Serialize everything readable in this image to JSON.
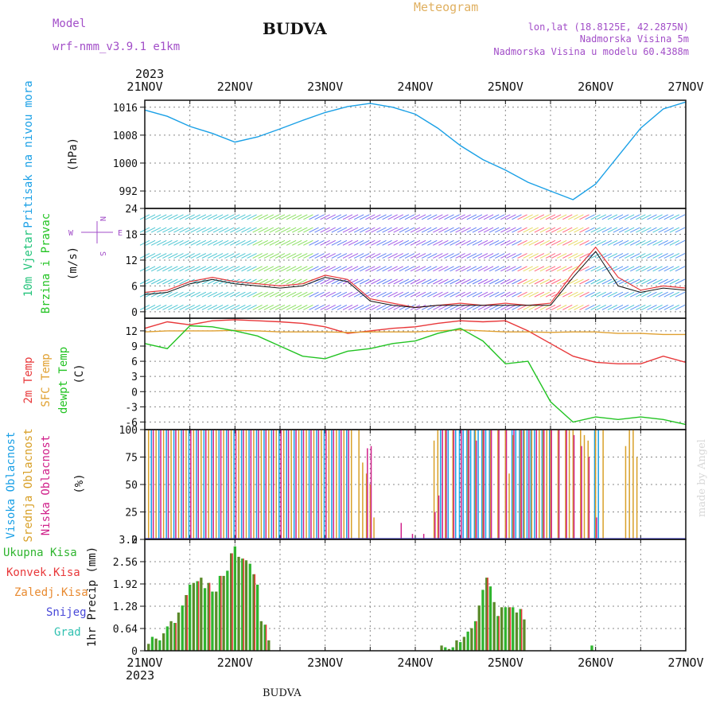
{
  "header": {
    "model_label": "Model",
    "model_name": "wrf-nmm_v3.9.1  e1km",
    "city": "BUDVA",
    "meteogram": "Meteogram",
    "lonlat": "lon,lat (18.8125E, 42.2875N)",
    "elevation": "Nadmorska Visina 5m",
    "model_elevation": "Nadmorska Visina u modelu 60.4388m",
    "year": "2023",
    "footer_city": "BUDVA",
    "watermark": "made by Angel"
  },
  "colors": {
    "pressure": "#1aa0e6",
    "temp2m": "#e8383a",
    "sfc_temp": "#e0a030",
    "dewpt": "#22c322",
    "high_cloud": "#1aa0e6",
    "mid_cloud": "#d8a028",
    "low_cloud": "#d0208a",
    "total_precip": "#2fb52f",
    "conv_precip": "#e8383a",
    "frz_precip": "#e88a30",
    "snow": "#4848d8",
    "hail": "#30c0b0",
    "wind_speed": "#e8383a",
    "gust": "#111111"
  },
  "chart_data": [
    {
      "type": "line",
      "panel": "pressure",
      "ylabel": [
        "Pritisak na nivou mora",
        "(hPa)"
      ],
      "x_ticks": [
        "21NOV",
        "22NOV",
        "23NOV",
        "24NOV",
        "25NOV",
        "26NOV",
        "27NOV"
      ],
      "y_ticks": [
        992,
        1000,
        1008,
        1016
      ],
      "ylim": [
        987,
        1018
      ],
      "x_hours": [
        0,
        6,
        12,
        18,
        24,
        30,
        36,
        42,
        48,
        54,
        60,
        66,
        72,
        78,
        84,
        90,
        96,
        102,
        108,
        114,
        120,
        126,
        132,
        138,
        144
      ],
      "series": [
        {
          "values": [
            1015.2,
            1013.4,
            1010.5,
            1008.5,
            1006.0,
            1007.5,
            1009.8,
            1012.2,
            1014.5,
            1016.2,
            1017.1,
            1016.0,
            1014.0,
            1010.0,
            1005.0,
            1001.0,
            998.0,
            994.5,
            992.0,
            989.5,
            994.0,
            1002.0,
            1010.0,
            1015.5,
            1017.5
          ]
        }
      ]
    },
    {
      "type": "line",
      "panel": "wind",
      "ylabel": [
        "10m Vjetar",
        "Brzina i Pravac",
        "(m/s)"
      ],
      "compass": {
        "w": "W",
        "e": "E",
        "n": "N",
        "s": "S"
      },
      "y_ticks": [
        0,
        6,
        12,
        18,
        24
      ],
      "ylim": [
        -1.5,
        24
      ],
      "x_hours": [
        0,
        6,
        12,
        18,
        24,
        30,
        36,
        42,
        48,
        54,
        60,
        66,
        72,
        78,
        84,
        90,
        96,
        102,
        108,
        114,
        120,
        126,
        132,
        138,
        144
      ],
      "series": [
        {
          "values": [
            4.5,
            5.0,
            7.0,
            8.0,
            7.0,
            6.5,
            6.0,
            6.5,
            8.5,
            7.5,
            3.0,
            2.0,
            1.0,
            1.5,
            2.0,
            1.5,
            2.0,
            1.5,
            2.0,
            9.0,
            15.0,
            8.0,
            5.0,
            6.0,
            5.5
          ]
        },
        {
          "values": [
            4.0,
            4.5,
            6.5,
            7.5,
            6.5,
            6.0,
            5.5,
            6.0,
            8.0,
            7.0,
            2.5,
            1.5,
            1.0,
            1.5,
            1.5,
            1.5,
            1.5,
            1.5,
            1.5,
            8.0,
            14.0,
            6.0,
            4.5,
            5.5,
            5.0
          ]
        }
      ]
    },
    {
      "type": "line",
      "panel": "temperature",
      "ylabel": [
        "2m Temp",
        "SFC Temp",
        "dewpt Temp",
        "(C)"
      ],
      "y_ticks": [
        -6,
        -3,
        0,
        3,
        6,
        9,
        12
      ],
      "ylim": [
        -7.5,
        14.5
      ],
      "x_hours": [
        0,
        6,
        12,
        18,
        24,
        30,
        36,
        42,
        48,
        54,
        60,
        66,
        72,
        78,
        84,
        90,
        96,
        102,
        108,
        114,
        120,
        126,
        132,
        138,
        144
      ],
      "series": [
        {
          "name": "2m Temp",
          "values": [
            12.5,
            13.8,
            13.2,
            14.0,
            14.2,
            14.0,
            13.8,
            13.5,
            12.8,
            11.5,
            12.0,
            12.5,
            12.8,
            13.5,
            14.0,
            13.8,
            14.0,
            12.0,
            9.5,
            7.0,
            5.8,
            5.5,
            5.5,
            7.0,
            5.8
          ]
        },
        {
          "name": "SFC Temp",
          "values": [
            11.8,
            12.0,
            12.0,
            12.0,
            12.1,
            12.0,
            11.8,
            11.8,
            11.8,
            11.7,
            11.8,
            11.8,
            11.8,
            12.0,
            12.2,
            12.0,
            11.8,
            11.8,
            11.7,
            11.8,
            11.8,
            11.5,
            11.5,
            11.3,
            11.3
          ]
        },
        {
          "name": "dewpt Temp",
          "values": [
            9.5,
            8.5,
            13.0,
            12.8,
            12.0,
            11.0,
            9.0,
            7.0,
            6.5,
            8.0,
            8.5,
            9.5,
            10.0,
            11.5,
            12.5,
            10.0,
            5.5,
            6.0,
            -2.0,
            -6.0,
            -5.0,
            -5.5,
            -5.0,
            -5.5,
            -6.5
          ]
        }
      ]
    },
    {
      "type": "bar",
      "panel": "clouds",
      "ylabel": [
        "Visoka Oblacnost",
        "Srednja Oblacnost",
        "Niska Oblacnost",
        "(%)"
      ],
      "y_ticks": [
        0,
        25,
        50,
        75,
        100
      ],
      "ylim": [
        0,
        100
      ],
      "series": [
        {
          "name": "Visoka Oblacnost",
          "hours": [
            2,
            4,
            6,
            8,
            10,
            12,
            14,
            16,
            18,
            20,
            22,
            24,
            26,
            28,
            30,
            32,
            34,
            36,
            38,
            40,
            42,
            44,
            46,
            48,
            50,
            52,
            54,
            79,
            81,
            83,
            84,
            85,
            86,
            87,
            88,
            89,
            90,
            91,
            92,
            98,
            99,
            100,
            101,
            102,
            103,
            104,
            106,
            108,
            120,
            121
          ],
          "values": [
            100,
            100,
            100,
            100,
            100,
            100,
            100,
            100,
            100,
            100,
            100,
            100,
            100,
            100,
            100,
            100,
            100,
            100,
            100,
            100,
            100,
            100,
            100,
            100,
            100,
            100,
            100,
            100,
            100,
            100,
            100,
            100,
            100,
            100,
            100,
            100,
            100,
            100,
            100,
            100,
            100,
            100,
            100,
            100,
            100,
            100,
            100,
            100,
            100,
            100
          ]
        },
        {
          "name": "Srednja Oblacnost",
          "hours": [
            1,
            3,
            5,
            7,
            9,
            11,
            13,
            15,
            17,
            19,
            21,
            23,
            25,
            27,
            29,
            31,
            33,
            35,
            37,
            39,
            41,
            43,
            45,
            47,
            49,
            51,
            53,
            55,
            57,
            58,
            59,
            60,
            61,
            77,
            78,
            80,
            82,
            86,
            88,
            90,
            92,
            94,
            96,
            97,
            98,
            100,
            101,
            103,
            105,
            106,
            107,
            108,
            110,
            112,
            113,
            114,
            116,
            117,
            118,
            120,
            122,
            128,
            129,
            130,
            131
          ],
          "values": [
            100,
            100,
            100,
            100,
            100,
            100,
            100,
            100,
            100,
            100,
            100,
            100,
            100,
            100,
            100,
            100,
            100,
            100,
            100,
            100,
            100,
            100,
            100,
            100,
            100,
            100,
            100,
            100,
            100,
            70,
            60,
            50,
            20,
            90,
            100,
            100,
            100,
            100,
            100,
            100,
            100,
            100,
            100,
            60,
            95,
            100,
            100,
            100,
            100,
            100,
            100,
            100,
            100,
            100,
            100,
            100,
            100,
            95,
            90,
            100,
            100,
            85,
            100,
            100,
            75
          ]
        },
        {
          "name": "Niska Oblacnost",
          "hours": [
            2,
            4,
            6,
            8,
            10,
            12,
            14,
            16,
            18,
            20,
            22,
            24,
            26,
            28,
            30,
            32,
            34,
            36,
            38,
            40,
            42,
            44,
            46,
            48,
            50,
            52,
            54,
            59,
            60,
            68,
            71,
            74,
            77,
            78,
            79,
            80,
            82,
            84,
            86,
            88,
            90,
            92,
            94,
            96,
            98,
            100,
            102,
            104,
            106,
            108,
            110,
            112,
            114,
            116,
            118,
            120
          ],
          "values": [
            100,
            100,
            100,
            100,
            100,
            100,
            100,
            100,
            100,
            100,
            100,
            100,
            100,
            100,
            100,
            100,
            100,
            100,
            100,
            100,
            100,
            100,
            100,
            100,
            100,
            100,
            100,
            83,
            85,
            15,
            5,
            5,
            25,
            40,
            100,
            100,
            100,
            100,
            100,
            90,
            100,
            100,
            100,
            100,
            100,
            100,
            100,
            100,
            100,
            100,
            100,
            100,
            95,
            85,
            75,
            20
          ]
        }
      ]
    },
    {
      "type": "bar",
      "panel": "precipitation",
      "ylabel": [
        "1hr Precip (mm)"
      ],
      "legend": [
        "Ukupna Kisa",
        "Konvek.Kisa",
        "Zaledj.Kisa",
        "Snijeg",
        "Grad"
      ],
      "y_ticks": [
        0,
        0.64,
        1.28,
        1.92,
        2.56,
        3.2
      ],
      "ylim": [
        0,
        3.2
      ],
      "hours": [
        1,
        2,
        3,
        4,
        5,
        6,
        7,
        8,
        9,
        10,
        11,
        12,
        13,
        14,
        15,
        16,
        17,
        18,
        19,
        20,
        21,
        22,
        23,
        24,
        25,
        26,
        27,
        28,
        29,
        30,
        31,
        32,
        33,
        34,
        79,
        80,
        81,
        82,
        83,
        84,
        85,
        86,
        87,
        88,
        89,
        90,
        91,
        92,
        93,
        94,
        95,
        96,
        97,
        98,
        99,
        100,
        101,
        102,
        103,
        119,
        120
      ],
      "series": [
        {
          "name": "Ukupna Kisa",
          "values": [
            0.2,
            0.4,
            0.35,
            0.3,
            0.5,
            0.7,
            0.85,
            0.8,
            1.1,
            1.3,
            1.6,
            1.9,
            1.95,
            2.0,
            2.1,
            1.8,
            1.95,
            1.7,
            1.7,
            2.15,
            2.15,
            2.3,
            2.8,
            3.0,
            2.7,
            2.65,
            2.6,
            2.5,
            2.2,
            1.9,
            0.85,
            0.75,
            0.3,
            0.0,
            0.15,
            0.1,
            0.05,
            0.1,
            0.3,
            0.25,
            0.4,
            0.55,
            0.65,
            0.85,
            1.3,
            1.75,
            2.1,
            1.85,
            1.4,
            1.0,
            1.25,
            1.25,
            1.25,
            1.25,
            1.1,
            1.2,
            0.9,
            0.0,
            0.0,
            0.15,
            0.0
          ]
        },
        {
          "name": "Konvek.Kisa",
          "values": [
            0.0,
            0.0,
            0.0,
            0.0,
            0.0,
            0.0,
            0.0,
            0.0,
            0.0,
            0.0,
            0.0,
            0.0,
            0.0,
            0.0,
            0.0,
            0.0,
            0.0,
            0.0,
            0.0,
            0.0,
            0.0,
            0.0,
            0.0,
            0.0,
            0.0,
            0.0,
            0.0,
            0.0,
            0.0,
            0.0,
            0.0,
            0.0,
            0.0,
            0.0,
            0.0,
            0.0,
            0.0,
            0.0,
            0.0,
            0.0,
            0.0,
            0.0,
            0.0,
            0.0,
            0.0,
            0.0,
            0.0,
            0.0,
            0.0,
            0.0,
            0.0,
            0.0,
            0.0,
            0.0,
            0.0,
            0.0,
            0.0,
            0.0,
            0.0,
            0.0,
            0.0
          ]
        }
      ]
    }
  ]
}
